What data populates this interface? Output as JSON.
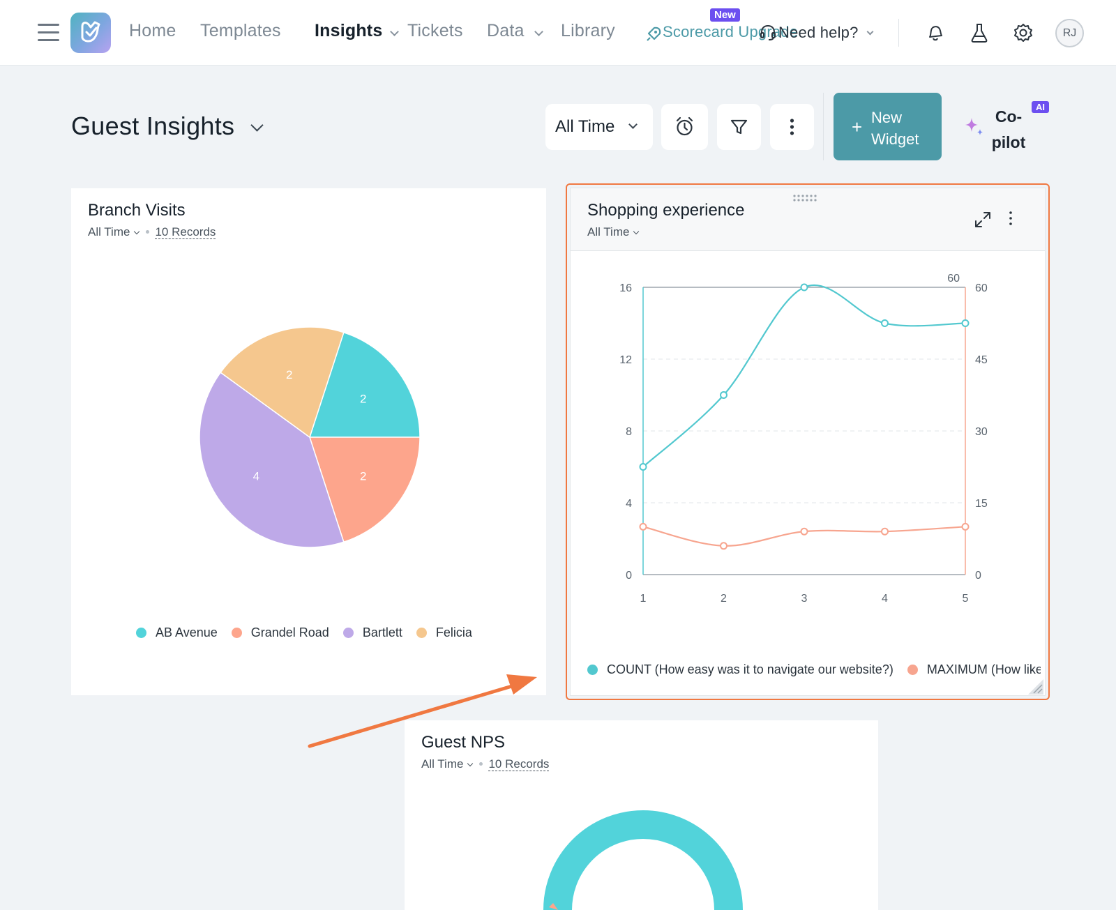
{
  "nav": {
    "home": "Home",
    "templates": "Templates",
    "insights": "Insights",
    "tickets": "Tickets",
    "data": "Data",
    "library": "Library",
    "scorecard_upgrade": "Scorecard Upgrade",
    "new_badge": "New",
    "help": "Need help?",
    "avatar_initials": "RJ",
    "accent_color": "#6c4ff0"
  },
  "header": {
    "title": "Guest Insights",
    "time_filter": "All Time",
    "new_widget": "New Widget",
    "new_widget_line1": "New",
    "new_widget_line2": "Widget",
    "copilot_line1": "Co-",
    "copilot_line2": "pilot",
    "ai_badge": "AI",
    "primary_color": "#4c9aa7"
  },
  "widgets": {
    "branch_visits": {
      "title": "Branch Visits",
      "time_filter": "All Time",
      "records": "10 Records",
      "chart_data": {
        "type": "pie",
        "categories": [
          "AB Avenue",
          "Grandel Road",
          "Bartlett",
          "Felicia"
        ],
        "values": [
          2,
          2,
          4,
          2
        ],
        "colors": [
          "#52d3da",
          "#fda58c",
          "#bea9e8",
          "#f5c78e"
        ],
        "data_labels": [
          "2",
          "2",
          "4",
          "2"
        ],
        "legend_position": "bottom"
      }
    },
    "shopping_experience": {
      "title": "Shopping experience",
      "time_filter": "All Time",
      "highlight_color": "#f07841",
      "chart_data": {
        "type": "line",
        "x": [
          1,
          2,
          3,
          4,
          5
        ],
        "x_ticks": [
          "1",
          "2",
          "3",
          "4",
          "5"
        ],
        "y_left_ticks": [
          "0",
          "4",
          "8",
          "12",
          "16"
        ],
        "y_right_ticks": [
          "0",
          "15",
          "30",
          "45",
          "60"
        ],
        "y_right_max_label": "60",
        "ylim_left": [
          0,
          16
        ],
        "ylim_right": [
          0,
          60
        ],
        "grid": true,
        "legend_position": "bottom",
        "series": [
          {
            "name": "COUNT (How easy was it to navigate our website?)",
            "axis": "left",
            "color": "#52c8cf",
            "values": [
              6,
              10,
              16,
              14,
              14
            ]
          },
          {
            "name": "MAXIMUM (How likely a",
            "axis": "right",
            "color": "#f7a58f",
            "values": [
              10,
              6,
              9,
              9,
              10
            ]
          }
        ]
      }
    },
    "guest_nps": {
      "title": "Guest NPS",
      "time_filter": "All Time",
      "records": "10 Records"
    }
  }
}
